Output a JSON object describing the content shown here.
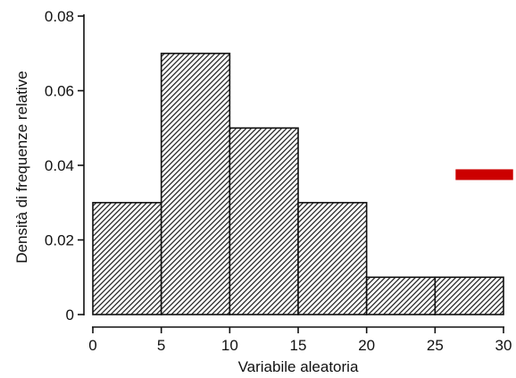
{
  "chart_data": {
    "type": "bar",
    "xlabel": "Variabile aleatoria",
    "ylabel": "Densità di frequenze relative",
    "bins": [
      {
        "x0": 0,
        "x1": 5,
        "value": 0.03
      },
      {
        "x0": 5,
        "x1": 10,
        "value": 0.07
      },
      {
        "x0": 10,
        "x1": 15,
        "value": 0.05
      },
      {
        "x0": 15,
        "x1": 20,
        "value": 0.03
      },
      {
        "x0": 20,
        "x1": 25,
        "value": 0.01
      },
      {
        "x0": 25,
        "x1": 30,
        "value": 0.01
      }
    ],
    "xticks": [
      "0",
      "5",
      "10",
      "15",
      "20",
      "25",
      "30"
    ],
    "xtick_values": [
      0,
      5,
      10,
      15,
      20,
      25,
      30
    ],
    "yticks": [
      "0",
      "0.02",
      "0.04",
      "0.06",
      "0.08"
    ],
    "ytick_values": [
      0,
      0.02,
      0.04,
      0.06,
      0.08
    ],
    "xlim": [
      0,
      30
    ],
    "ylim": [
      0,
      0.08
    ],
    "grid": false,
    "bar_fill": "hatched",
    "bar_color": "#2a2a2a",
    "marker": {
      "color": "#cc0000",
      "x0": 26.5,
      "x1": 30.7,
      "y": 0.0375
    }
  }
}
